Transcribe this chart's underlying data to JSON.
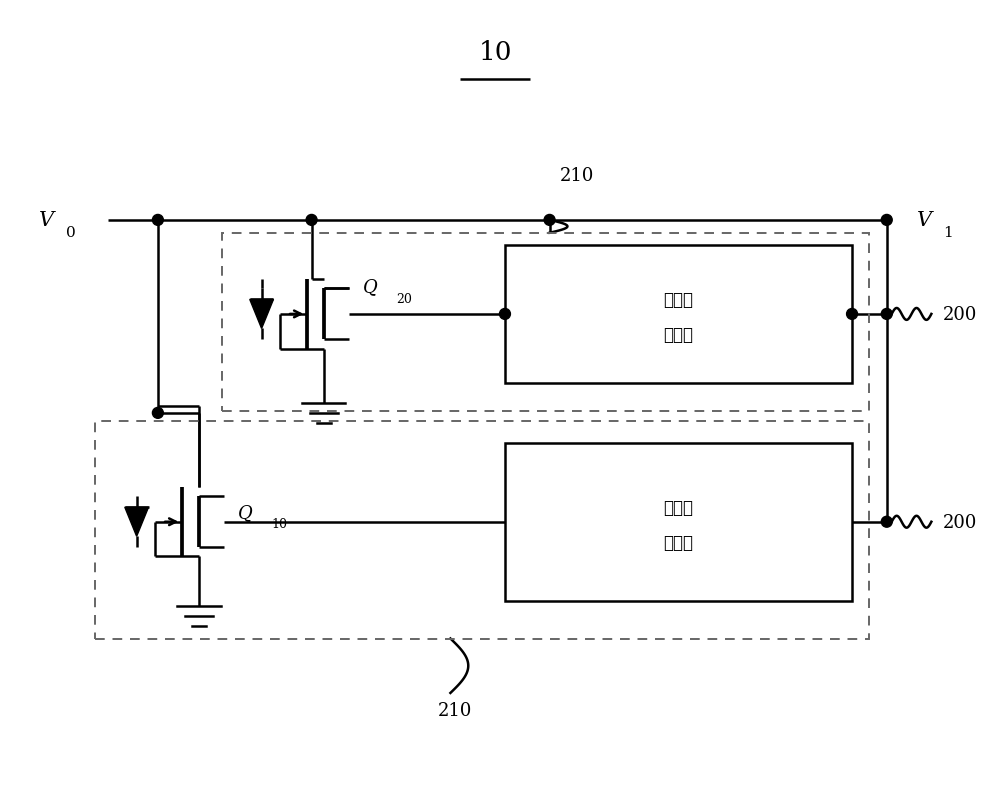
{
  "title": "10",
  "bg_color": "#ffffff",
  "line_color": "#000000",
  "dashed_color": "#666666",
  "fig_width": 10.0,
  "fig_height": 8.04,
  "v0_label": "V",
  "v0_sub": "0",
  "v1_label": "V",
  "v1_sub": "1",
  "label_200a": "200",
  "label_200b": "200",
  "label_210a": "210",
  "label_210b": "210",
  "label_q20": "Q",
  "label_q20_sub": "20",
  "label_q10": "Q",
  "label_q10_sub": "10",
  "box_text_top_1": "过压检",
  "box_text_top_2": "测电路",
  "box_text_bot_1": "过压检",
  "box_text_bot_2": "测电路"
}
